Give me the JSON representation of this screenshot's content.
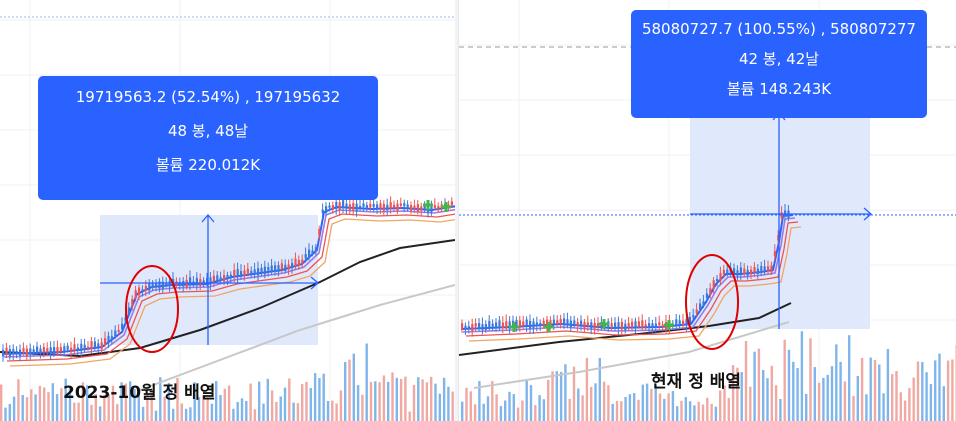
{
  "colors": {
    "up": "#26a69a",
    "down": "#ef5350",
    "ma_fast": "#2962ff",
    "ma_2": "#9c7be0",
    "ma_3": "#ef5350",
    "ma_4": "#f0a560",
    "ma_slow": "#222222",
    "ma_long": "#c8c8c8",
    "measure_fill": "#dbe5fb",
    "measure_line": "#2962ff",
    "tooltip_bg": "#2962ff",
    "highlight_ellipse": "#e00000"
  },
  "left": {
    "tooltip": {
      "line1": "19719563.2 (52.54%) , 197195632",
      "line2": "48 봉, 48날",
      "line3": "볼륨 220.012K"
    },
    "caption": "2023-10월 정 배열"
  },
  "right": {
    "tooltip": {
      "line1": "58080727.7 (100.55%) , 580807277",
      "line2": "42 봉, 42날",
      "line3": "볼륨 148.243K"
    },
    "caption": "현재 정 배열"
  },
  "chart_data": [
    {
      "type": "candlestick",
      "panel": "left",
      "measure": {
        "price_change": 19719563.2,
        "percent_change": 52.54,
        "bars": 48,
        "days": 48,
        "volume": "220.012K"
      },
      "annotation": "2023-10월 정 배열"
    },
    {
      "type": "candlestick",
      "panel": "right",
      "measure": {
        "price_change": 58080727.7,
        "percent_change": 100.55,
        "bars": 42,
        "days": 42,
        "volume": "148.243K"
      },
      "annotation": "현재 정 배열"
    }
  ]
}
